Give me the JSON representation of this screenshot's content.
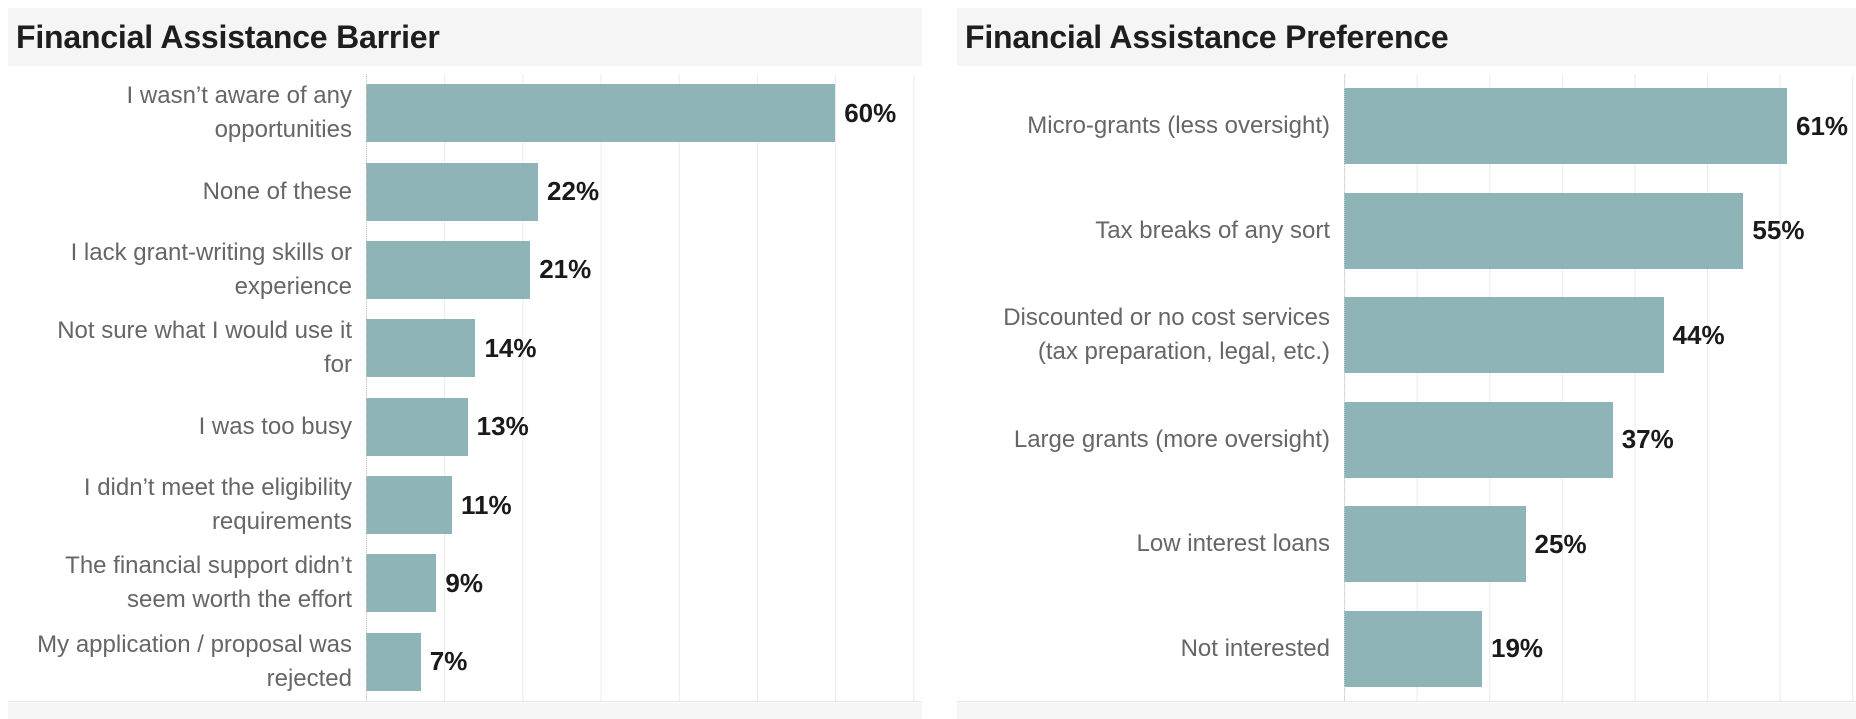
{
  "colors": {
    "bar": "#8FB4B7",
    "title_text": "#1e1e1e",
    "category_label": "#666666",
    "value_label": "#1a1a1a",
    "title_band_background": "#f5f5f5",
    "gridline": "#eaeaea",
    "axis_dotted": "#c9c9c9",
    "bottom_strip": "#f5f5f5",
    "page_background": "#ffffff"
  },
  "chart_data": [
    {
      "type": "bar",
      "orientation": "horizontal",
      "title": "Financial Assistance Barrier",
      "categories": [
        "I wasn’t aware of any\nopportunities",
        "None of these",
        "I lack grant-writing skills or\nexperience",
        "Not sure what I would use it\nfor",
        "I was too busy",
        "I didn’t meet the eligibility\nrequirements",
        "The financial support didn’t\nseem worth the effort",
        "My application / proposal was\nrejected"
      ],
      "values": [
        60,
        22,
        21,
        14,
        13,
        11,
        9,
        7
      ],
      "value_labels": [
        "60%",
        "22%",
        "21%",
        "14%",
        "13%",
        "11%",
        "9%",
        "7%"
      ],
      "unit": "%",
      "xlabel": "",
      "ylabel": "",
      "xlim": [
        0,
        71.1
      ],
      "gridline_interval": 10,
      "grid": "vertical",
      "legend": "none",
      "bar_color": "#8FB4B7"
    },
    {
      "type": "bar",
      "orientation": "horizontal",
      "title": "Financial Assistance Preference",
      "categories": [
        "Micro-grants (less oversight)",
        "Tax breaks of any sort",
        "Discounted or no cost services\n(tax preparation, legal, etc.)",
        "Large grants (more oversight)",
        "Low interest loans",
        "Not interested"
      ],
      "values": [
        61,
        55,
        44,
        37,
        25,
        19
      ],
      "value_labels": [
        "61%",
        "55%",
        "44%",
        "37%",
        "25%",
        "19%"
      ],
      "unit": "%",
      "xlabel": "",
      "ylabel": "",
      "xlim": [
        0,
        70.5
      ],
      "gridline_interval": 10,
      "grid": "vertical",
      "legend": "none",
      "bar_color": "#8FB4B7"
    }
  ]
}
